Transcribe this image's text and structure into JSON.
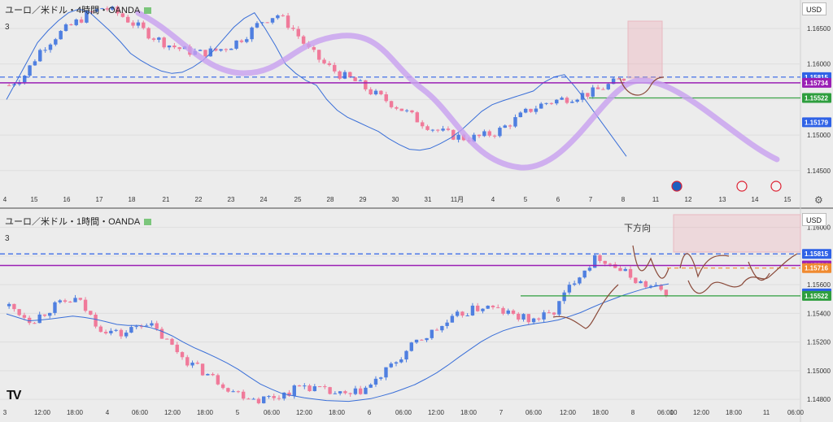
{
  "top_panel": {
    "title": "ユーロ／米ドル・4時間・OANDA",
    "count": "3",
    "currency": "USD"
  },
  "bottom_panel": {
    "title": "ユーロ／米ドル・1時間・OANDA",
    "count": "3",
    "currency": "USD",
    "annotation": "下方向"
  },
  "colors": {
    "bull": "#4f7fe0",
    "bear": "#f07a9a",
    "ma": "#3a6fd8",
    "purple_line": "#9a1fb5",
    "blue_dashed": "#2f62e6",
    "green_line": "#2e9e3e",
    "orange_dashed": "#f08a30",
    "smooth_curve": "#c8a0f0",
    "projection": "#8a4a3a"
  },
  "chart_data": [
    {
      "type": "candlestick",
      "title": "ユーロ／米ドル・4時間・OANDA",
      "x_ticks": [
        "4",
        "15",
        "16",
        "17",
        "18",
        "21",
        "22",
        "23",
        "24",
        "25",
        "28",
        "29",
        "30",
        "31",
        "11月",
        "4",
        "5",
        "6",
        "7",
        "8",
        "11",
        "12",
        "13",
        "14",
        "15"
      ],
      "y_ticks": [
        "1.16500",
        "1.16000",
        "1.15500",
        "1.15000",
        "1.14500"
      ],
      "ylim": [
        1.142,
        1.169
      ],
      "price_labels": [
        {
          "value": "1.15815",
          "kind": "blue_dashed"
        },
        {
          "value": "1.15734",
          "kind": "purple_line"
        },
        {
          "value": "1.15522",
          "kind": "green_line"
        },
        {
          "value": "1.15179",
          "kind": "current"
        }
      ],
      "series": [
        {
          "name": "",
          "values": [
            1.157,
            1.1585,
            1.162,
            1.164,
            1.1655,
            1.167,
            1.168,
            1.167,
            1.1655,
            1.164,
            1.1628,
            1.162,
            1.1615,
            1.1618,
            1.1625,
            1.164,
            1.166,
            1.167,
            1.165,
            1.162,
            1.16,
            1.1585,
            1.1575,
            1.156,
            1.1548,
            1.1535,
            1.152,
            1.1508,
            1.15,
            1.1495,
            1.1498,
            1.1505,
            1.152,
            1.1535,
            1.1545,
            1.155,
            1.1555,
            1.156,
            1.157,
            1.158
          ]
        },
        {
          "name": "",
          "values": [
            1.155,
            1.159,
            1.163,
            1.1655,
            1.1672,
            1.168,
            1.166,
            1.164,
            1.1615,
            1.16,
            1.159,
            1.1585,
            1.1595,
            1.161,
            1.1635,
            1.166,
            1.1672,
            1.164,
            1.16,
            1.158,
            1.157,
            1.154,
            1.1525,
            1.1515,
            1.1505,
            1.149,
            1.148,
            1.1478,
            1.1488,
            1.15,
            1.152,
            1.154,
            1.1548,
            1.1555,
            1.1562,
            1.158,
            1.1585,
            1.156,
            1.153,
            1.15,
            1.147
          ]
        }
      ]
    },
    {
      "type": "candlestick",
      "title": "ユーロ／米ドル・1時間・OANDA",
      "x_ticks": [
        "3",
        "12:00",
        "18:00",
        "4",
        "06:00",
        "12:00",
        "18:00",
        "5",
        "06:00",
        "12:00",
        "18:00",
        "6",
        "06:00",
        "12:00",
        "18:00",
        "7",
        "06:00",
        "12:00",
        "18:00",
        "8",
        "06:00",
        "10",
        "12:00",
        "18:00",
        "11",
        "06:00"
      ],
      "y_ticks": [
        "1.16000",
        "1.15800",
        "1.15600",
        "1.15400",
        "1.15200",
        "1.15000",
        "1.14800"
      ],
      "ylim": [
        1.1475,
        1.161
      ],
      "price_labels": [
        {
          "value": "1.15815",
          "kind": "blue_dashed"
        },
        {
          "value": "1.15734",
          "kind": "purple_line"
        },
        {
          "value": "1.15716",
          "kind": "orange_dashed"
        },
        {
          "value": "1.15539",
          "kind": "current"
        },
        {
          "value": "1.15522",
          "kind": "green_line"
        }
      ],
      "series": [
        {
          "name": "",
          "values": [
            1.1545,
            1.1535,
            1.1545,
            1.155,
            1.153,
            1.1525,
            1.1535,
            1.152,
            1.1505,
            1.1495,
            1.1485,
            1.148,
            1.1483,
            1.149,
            1.1485,
            1.1482,
            1.149,
            1.1505,
            1.152,
            1.153,
            1.154,
            1.1545,
            1.154,
            1.1535,
            1.154,
            1.1565,
            1.158,
            1.157,
            1.156,
            1.1555
          ]
        }
      ]
    }
  ]
}
